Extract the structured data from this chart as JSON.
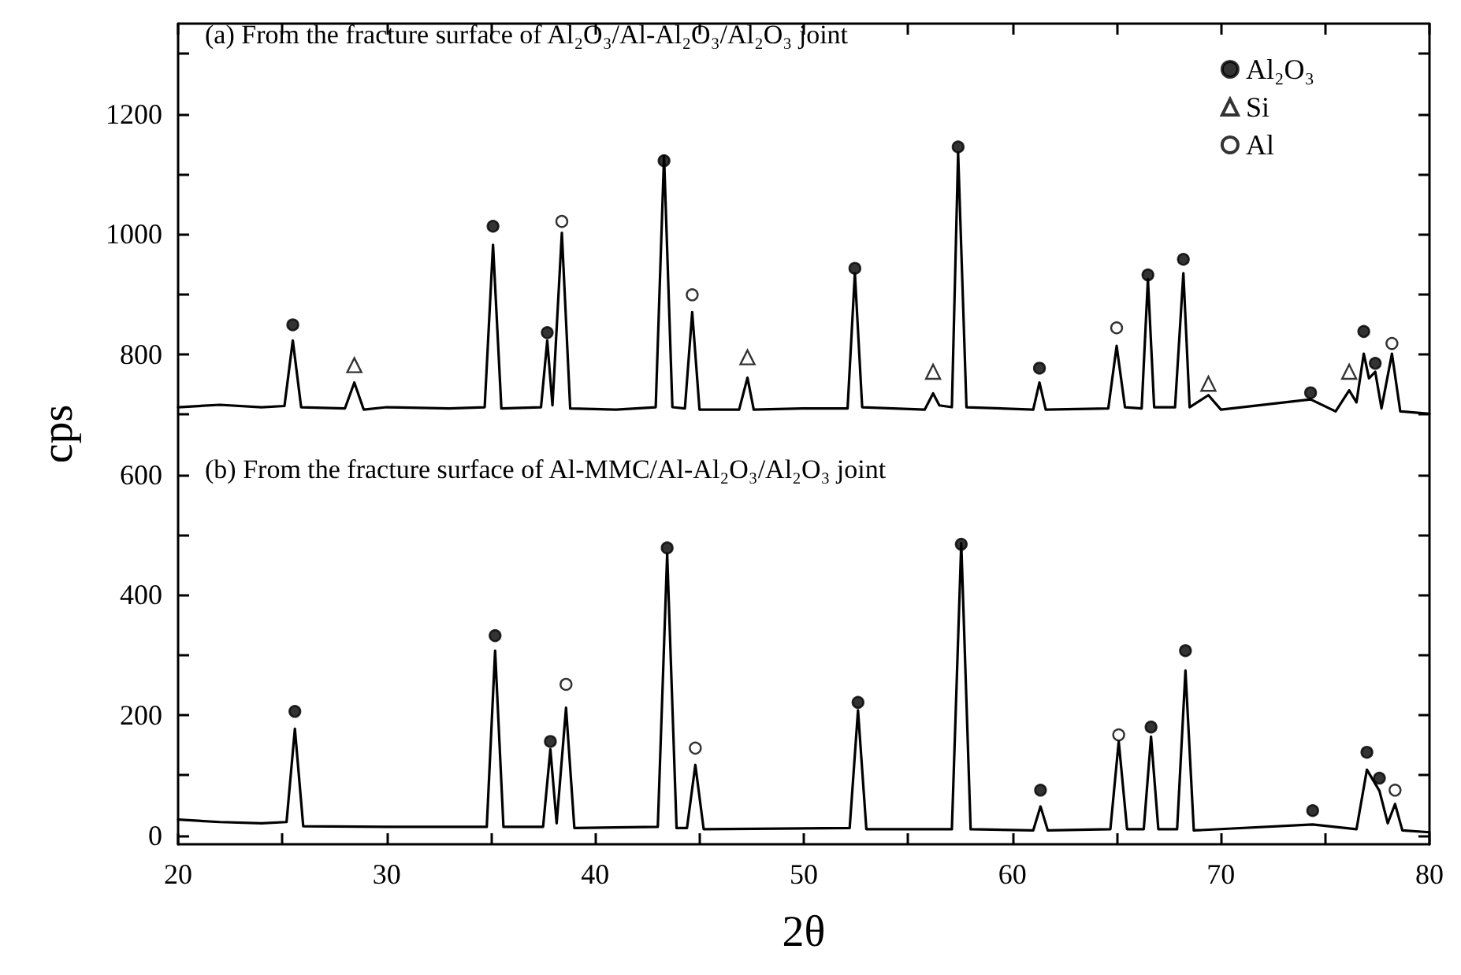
{
  "chart_data": {
    "type": "line",
    "xlabel": "2θ",
    "ylabel": "cps",
    "xlim": [
      20,
      80
    ],
    "xticks": [
      20,
      {
        "value": 25,
        "label": null
      },
      30,
      {
        "value": 35,
        "label": null
      },
      40,
      {
        "value": 45,
        "label": null
      },
      50,
      {
        "value": 55,
        "label": null
      },
      60,
      {
        "value": 65,
        "label": null
      },
      70,
      {
        "value": 75,
        "label": null
      },
      80
    ],
    "ylim": [
      -15,
      1350
    ],
    "yticks": [
      0,
      {
        "value": 100,
        "label": null
      },
      200,
      {
        "value": 300,
        "label": null
      },
      400,
      {
        "value": 500,
        "label": null
      },
      600,
      {
        "value": 700,
        "label": null
      },
      800,
      {
        "value": 900,
        "label": null
      },
      1000,
      {
        "value": 1100,
        "label": null
      },
      1200,
      {
        "value": 1300,
        "label": null
      }
    ],
    "grid": false,
    "legend": "top right",
    "annotations": [
      "(a) From the fracture surface of Al₂O₃/Al-Al₂O₃/Al₂O₃ joint",
      "(b) From the fracture surface of Al-MMC/Al-Al₂O₃/Al₂O₃ joint"
    ],
    "series": [
      {
        "color": "#000000",
        "marker": "none",
        "line_style": "solid",
        "x": [
          20,
          22,
          24,
          25.1,
          25.5,
          25.9,
          28.0,
          28.45,
          28.9,
          30,
          33,
          34.7,
          35.1,
          35.5,
          37.4,
          37.7,
          37.95,
          38.4,
          38.8,
          41,
          42.9,
          43.3,
          43.7,
          44.3,
          44.65,
          45.0,
          46.9,
          47.3,
          47.6,
          50,
          52.1,
          52.45,
          52.8,
          55.8,
          56.2,
          56.5,
          57.1,
          57.4,
          57.8,
          61.0,
          61.3,
          61.6,
          64.6,
          65.0,
          65.4,
          66.2,
          66.5,
          66.8,
          67.8,
          68.2,
          68.5,
          69.4,
          70,
          74.3,
          75.5,
          76.15,
          76.5,
          76.85,
          77.1,
          77.4,
          77.7,
          78.2,
          78.6,
          80
        ],
        "values": [
          712,
          716,
          712,
          714,
          823,
          712,
          710,
          753,
          708,
          712,
          710,
          712,
          982,
          710,
          712,
          823,
          715,
          1002,
          710,
          708,
          712,
          1130,
          712,
          710,
          870,
          708,
          708,
          761,
          708,
          710,
          710,
          935,
          712,
          708,
          735,
          715,
          712,
          1135,
          712,
          708,
          753,
          708,
          710,
          814,
          712,
          710,
          925,
          712,
          712,
          935,
          712,
          732,
          708,
          725,
          705,
          740,
          720,
          801,
          760,
          771,
          710,
          801,
          705,
          701
        ]
      },
      {
        "color": "#000000",
        "marker": "none",
        "line_style": "solid",
        "x": [
          20,
          22,
          24,
          25.2,
          25.6,
          26.0,
          30,
          34.8,
          35.2,
          35.6,
          37.5,
          37.85,
          38.15,
          38.6,
          39.0,
          43.0,
          43.45,
          43.9,
          44.4,
          44.8,
          45.2,
          52.2,
          52.6,
          53.0,
          57.1,
          57.55,
          58.0,
          61.0,
          61.35,
          61.7,
          64.7,
          65.1,
          65.5,
          66.3,
          66.65,
          67.0,
          67.9,
          68.3,
          68.7,
          74.4,
          76.5,
          77.0,
          77.6,
          78.0,
          78.35,
          78.7,
          80
        ],
        "values": [
          26,
          22,
          20,
          22,
          177,
          15,
          14,
          14,
          307,
          14,
          14,
          143,
          20,
          212,
          12,
          14,
          468,
          12,
          12,
          117,
          10,
          12,
          208,
          10,
          10,
          486,
          10,
          8,
          48,
          8,
          10,
          156,
          10,
          10,
          164,
          10,
          10,
          274,
          8,
          18,
          10,
          109,
          74,
          20,
          52,
          8,
          5
        ]
      },
      {
        "type": "scatter",
        "name": "Al₂O₃",
        "color": "#000000",
        "marker": "circle",
        "x": [
          25.5,
          35.1,
          37.7,
          43.3,
          52.45,
          57.4,
          61.3,
          66.5,
          68.2,
          74.3,
          76.85,
          77.4,
          25.6,
          35.2,
          37.85,
          43.45,
          52.6,
          57.55,
          61.35,
          66.65,
          68.3,
          74.4,
          77.0,
          77.6
        ],
        "values": [
          849,
          1013,
          836,
          1122,
          943,
          1145,
          777,
          932,
          958,
          736,
          838,
          785,
          206,
          332,
          156,
          478,
          221,
          484,
          75,
          180,
          307,
          41,
          138,
          95
        ]
      },
      {
        "type": "scatter",
        "name": "Si",
        "color": "#ffffff",
        "marker": "triangle",
        "x": [
          28.45,
          47.3,
          56.2,
          69.4,
          76.15
        ],
        "values": [
          782,
          795,
          771,
          751,
          771
        ]
      },
      {
        "type": "scatter",
        "name": "Al",
        "color": "#ffffff",
        "marker": "circle",
        "x": [
          38.4,
          44.65,
          65.0,
          78.2,
          38.6,
          44.8,
          65.1,
          78.35
        ],
        "values": [
          1021,
          899,
          844,
          818,
          251,
          145,
          167,
          75
        ]
      }
    ]
  }
}
